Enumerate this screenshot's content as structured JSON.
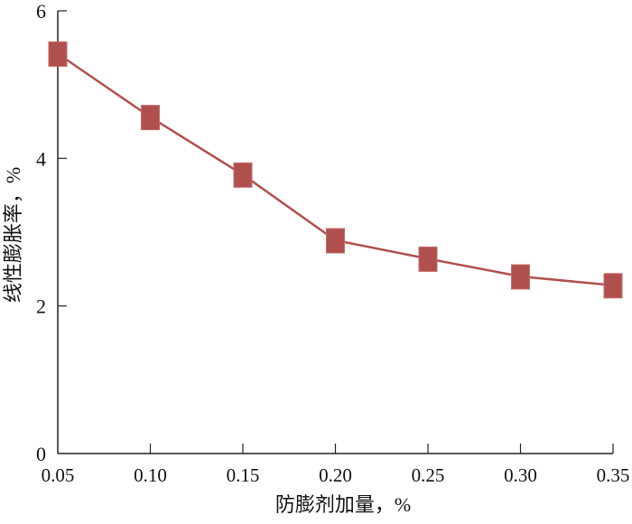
{
  "chart_data": {
    "type": "line",
    "title": "",
    "xlabel": "防膨剂加量，%",
    "ylabel": "线性膨胀率，%",
    "x": [
      0.05,
      0.1,
      0.15,
      0.2,
      0.25,
      0.3,
      0.35
    ],
    "x_tick_labels": [
      "0.05",
      "0.10",
      "0.15",
      "0.20",
      "0.25",
      "0.30",
      "0.35"
    ],
    "y_ticks": [
      0,
      2,
      4,
      6
    ],
    "y_tick_labels": [
      "0",
      "2",
      "4",
      "6"
    ],
    "xlim": [
      0.05,
      0.35
    ],
    "ylim": [
      0,
      6
    ],
    "grid": false,
    "series": [
      {
        "name": "线性膨胀率",
        "values": [
          5.42,
          4.56,
          3.78,
          2.89,
          2.64,
          2.4,
          2.28
        ],
        "color": "#b0504e",
        "marker": "square"
      }
    ]
  }
}
